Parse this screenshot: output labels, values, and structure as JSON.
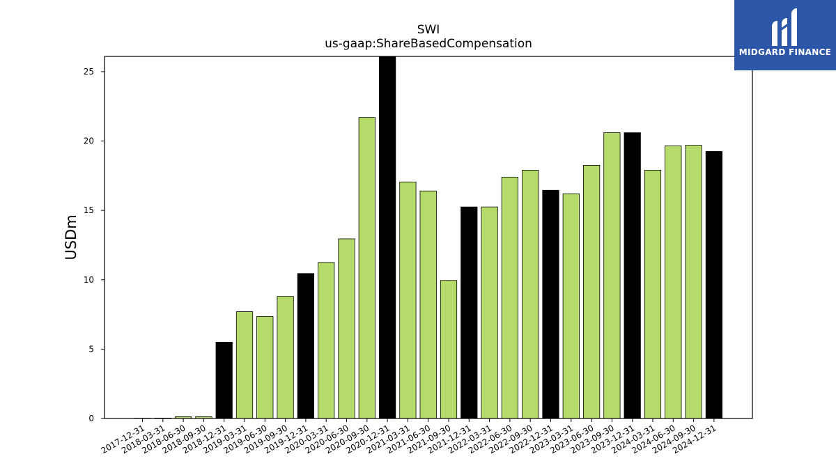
{
  "chart_data": {
    "type": "bar",
    "title": "SWI",
    "subtitle": "us-gaap:ShareBasedCompensation",
    "xlabel": "",
    "ylabel": "USDm",
    "ylim": [
      0,
      26.1
    ],
    "yticks": [
      0,
      5,
      10,
      15,
      20,
      25
    ],
    "categories": [
      "2017-12-31",
      "2018-03-31",
      "2018-06-30",
      "2018-09-30",
      "2018-12-31",
      "2019-03-31",
      "2019-06-30",
      "2019-09-30",
      "2019-12-31",
      "2020-03-31",
      "2020-06-30",
      "2020-09-30",
      "2020-12-31",
      "2021-03-31",
      "2021-06-30",
      "2021-09-30",
      "2021-12-31",
      "2022-03-31",
      "2022-06-30",
      "2022-09-30",
      "2022-12-31",
      "2023-03-31",
      "2023-06-30",
      "2023-09-30",
      "2023-12-31",
      "2024-03-31",
      "2024-06-30",
      "2024-09-30",
      "2024-12-31"
    ],
    "values": [
      0.02,
      0.03,
      0.12,
      0.12,
      5.5,
      7.7,
      7.35,
      8.8,
      10.45,
      11.25,
      12.95,
      21.7,
      26.1,
      17.05,
      16.4,
      9.95,
      15.25,
      15.25,
      17.4,
      17.9,
      16.45,
      16.2,
      18.25,
      20.6,
      20.6,
      17.9,
      19.65,
      19.7,
      19.25
    ],
    "highlight_color": "#000000",
    "bar_color": "#b5dc6a",
    "highlight_indices": [
      4,
      8,
      12,
      16,
      20,
      24,
      28
    ],
    "grid": false
  },
  "logo": {
    "text": "MIDGARD FINANCE",
    "background": "#2c57a8"
  }
}
